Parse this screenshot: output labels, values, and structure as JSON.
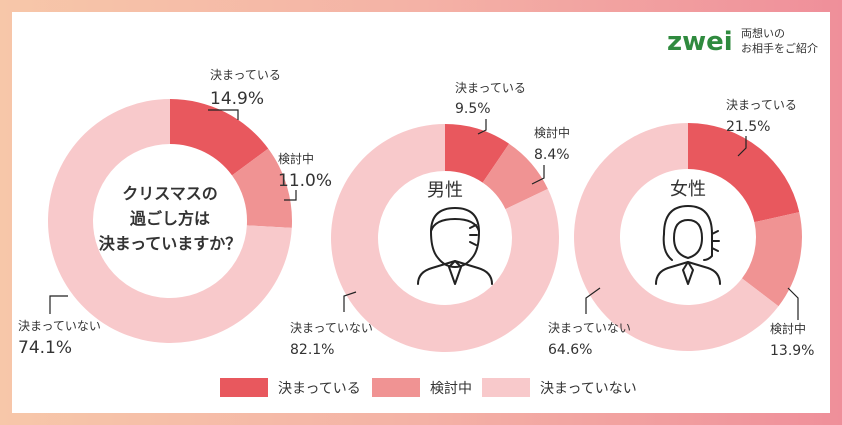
{
  "brand": {
    "logo_text": "zwei",
    "tagline_line1": "両想いの",
    "tagline_line2": "お相手をご紹介"
  },
  "colors": {
    "decided": "#e8585e",
    "considering": "#f09393",
    "not_decided": "#f8c9cb",
    "text": "#333333"
  },
  "icons": [
    "man-icon",
    "woman-icon"
  ],
  "chart_data": [
    {
      "type": "pie",
      "title": "クリスマスの\n過ごし方は\n決まっていますか？",
      "categories": [
        "決まっている",
        "検討中",
        "決まっていない"
      ],
      "values": [
        14.9,
        11.0,
        74.1
      ],
      "labels": [
        "14.9%",
        "11.0%",
        "74.1%"
      ]
    },
    {
      "type": "pie",
      "title": "男性",
      "categories": [
        "決まっている",
        "検討中",
        "決まっていない"
      ],
      "values": [
        9.5,
        8.4,
        82.1
      ],
      "labels": [
        "9.5%",
        "8.4%",
        "82.1%"
      ]
    },
    {
      "type": "pie",
      "title": "女性",
      "categories": [
        "決まっている",
        "検討中",
        "決まっていない"
      ],
      "values": [
        21.5,
        13.9,
        64.6
      ],
      "labels": [
        "21.5%",
        "13.9%",
        "64.6%"
      ]
    }
  ],
  "legend": [
    "決まっている",
    "検討中",
    "決まっていない"
  ]
}
